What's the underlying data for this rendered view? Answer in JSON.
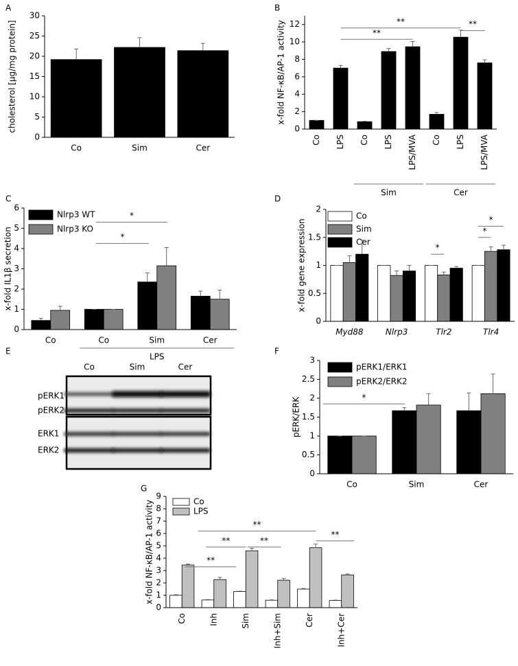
{
  "chart_data": [
    {
      "type": "bar",
      "label": "A",
      "ylabel": "cholesterol [µg/mg protein]",
      "categories": [
        "Co",
        "Sim",
        "Cer"
      ],
      "series": [
        {
          "color": "#000000",
          "values": [
            19.2,
            22.2,
            21.4
          ],
          "errors": [
            2.6,
            2.4,
            1.8
          ]
        }
      ],
      "ylim": [
        0,
        30
      ],
      "yticks": [
        0,
        5,
        10,
        15,
        20,
        25,
        30
      ]
    },
    {
      "type": "bar",
      "label": "B",
      "ylabel": "x-fold NF-κB/AP-1 activity",
      "categories": [
        "Co",
        "LPS",
        "Co",
        "LPS",
        "LPS/MVA",
        "Co",
        "LPS",
        "LPS/MVA"
      ],
      "rotate_xlabels": true,
      "group_labels": [
        "Sim",
        "Cer"
      ],
      "annotations": [
        "**",
        "**",
        "**"
      ],
      "series": [
        {
          "color": "#000000",
          "values": [
            1,
            7,
            0.85,
            8.9,
            9.45,
            1.7,
            10.55,
            7.6
          ],
          "errors": [
            0,
            0.3,
            0.05,
            0.35,
            0.6,
            0.2,
            0.8,
            0.35
          ]
        }
      ],
      "ylim": [
        0,
        13
      ],
      "yticks": [
        0,
        2,
        4,
        6,
        8,
        10,
        12
      ]
    },
    {
      "type": "bar",
      "label": "C",
      "ylabel": "x-fold IL1β secretion",
      "categories": [
        "Co",
        "Co",
        "Sim",
        "Cer"
      ],
      "group_labels": [
        "LPS"
      ],
      "annotations": [
        "*",
        "*"
      ],
      "legend": "upper left",
      "series": [
        {
          "name": "Nlrp3 WT",
          "color": "#000000",
          "values": [
            0.45,
            1,
            2.35,
            1.65
          ],
          "errors": [
            0.1,
            0,
            0.45,
            0.25
          ]
        },
        {
          "name": "Nlrp3 KO",
          "color": "#808080",
          "values": [
            0.95,
            1,
            3.15,
            1.5
          ],
          "errors": [
            0.2,
            0,
            0.9,
            0.45
          ]
        }
      ],
      "ylim": [
        0,
        6
      ],
      "yticks": [
        0,
        1,
        2,
        3,
        4,
        5,
        6
      ]
    },
    {
      "type": "bar",
      "label": "D",
      "ylabel": "x-fold gene expression",
      "categories": [
        "Myd88",
        "Nlrp3",
        "Tlr2",
        "Tlr4"
      ],
      "italic_categories": true,
      "annotations": [
        "*",
        "*",
        "*"
      ],
      "legend": "upper left",
      "series": [
        {
          "name": "Co",
          "color": "#ffffff",
          "values": [
            1,
            1,
            1,
            1
          ],
          "errors": [
            0,
            0,
            0,
            0
          ]
        },
        {
          "name": "Sim",
          "color": "#808080",
          "values": [
            1.05,
            0.82,
            0.83,
            1.25
          ],
          "errors": [
            0.12,
            0.08,
            0.05,
            0.08
          ]
        },
        {
          "name": "Cer",
          "color": "#000000",
          "values": [
            1.2,
            0.9,
            0.95,
            1.28
          ],
          "errors": [
            0.25,
            0.1,
            0.03,
            0.08
          ]
        }
      ],
      "ylim": [
        0,
        2
      ],
      "yticks": [
        0,
        0.5,
        1,
        1.5,
        2
      ]
    },
    {
      "type": "blot",
      "label": "E",
      "lanes": [
        "Co",
        "Sim",
        "Cer"
      ],
      "bands": [
        "pERK1",
        "pERK2",
        "ERK1",
        "ERK2"
      ]
    },
    {
      "type": "bar",
      "label": "F",
      "ylabel": "pERK/ERK",
      "categories": [
        "Co",
        "Sim",
        "Cer"
      ],
      "annotations": [
        "*"
      ],
      "legend": "upper left",
      "series": [
        {
          "name": "pERK1/ERK1",
          "color": "#000000",
          "values": [
            1,
            1.67,
            1.67
          ],
          "errors": [
            0,
            0.08,
            0.47
          ]
        },
        {
          "name": "pERK2/ERK2",
          "color": "#808080",
          "values": [
            1,
            1.82,
            2.12
          ],
          "errors": [
            0,
            0.3,
            0.52
          ]
        }
      ],
      "ylim": [
        0,
        3
      ],
      "yticks": [
        0,
        0.5,
        1,
        1.5,
        2,
        2.5,
        3
      ]
    },
    {
      "type": "bar",
      "label": "G",
      "ylabel": "x-fold NF-κB/AP-1 activity",
      "categories": [
        "Co",
        "Inh",
        "Sim",
        "Inh+Sim",
        "Cer",
        "Inh+Cer"
      ],
      "rotate_xlabels": true,
      "annotations": [
        "**",
        "**",
        "**",
        "**",
        "**"
      ],
      "legend": "upper left",
      "series": [
        {
          "name": "Co",
          "color": "#ffffff",
          "values": [
            1,
            0.62,
            1.3,
            0.6,
            1.5,
            0.58
          ],
          "errors": [
            0.05,
            0.03,
            0.03,
            0.03,
            0.05,
            0.03
          ]
        },
        {
          "name": "LPS",
          "color": "#c0c0c0",
          "values": [
            3.45,
            2.27,
            4.6,
            2.22,
            4.85,
            2.65
          ],
          "errors": [
            0.08,
            0.18,
            0.2,
            0.15,
            0.3,
            0.08
          ]
        }
      ],
      "ylim": [
        0,
        9
      ],
      "yticks": [
        0,
        1,
        2,
        3,
        4,
        5,
        6,
        7,
        8,
        9
      ]
    }
  ]
}
